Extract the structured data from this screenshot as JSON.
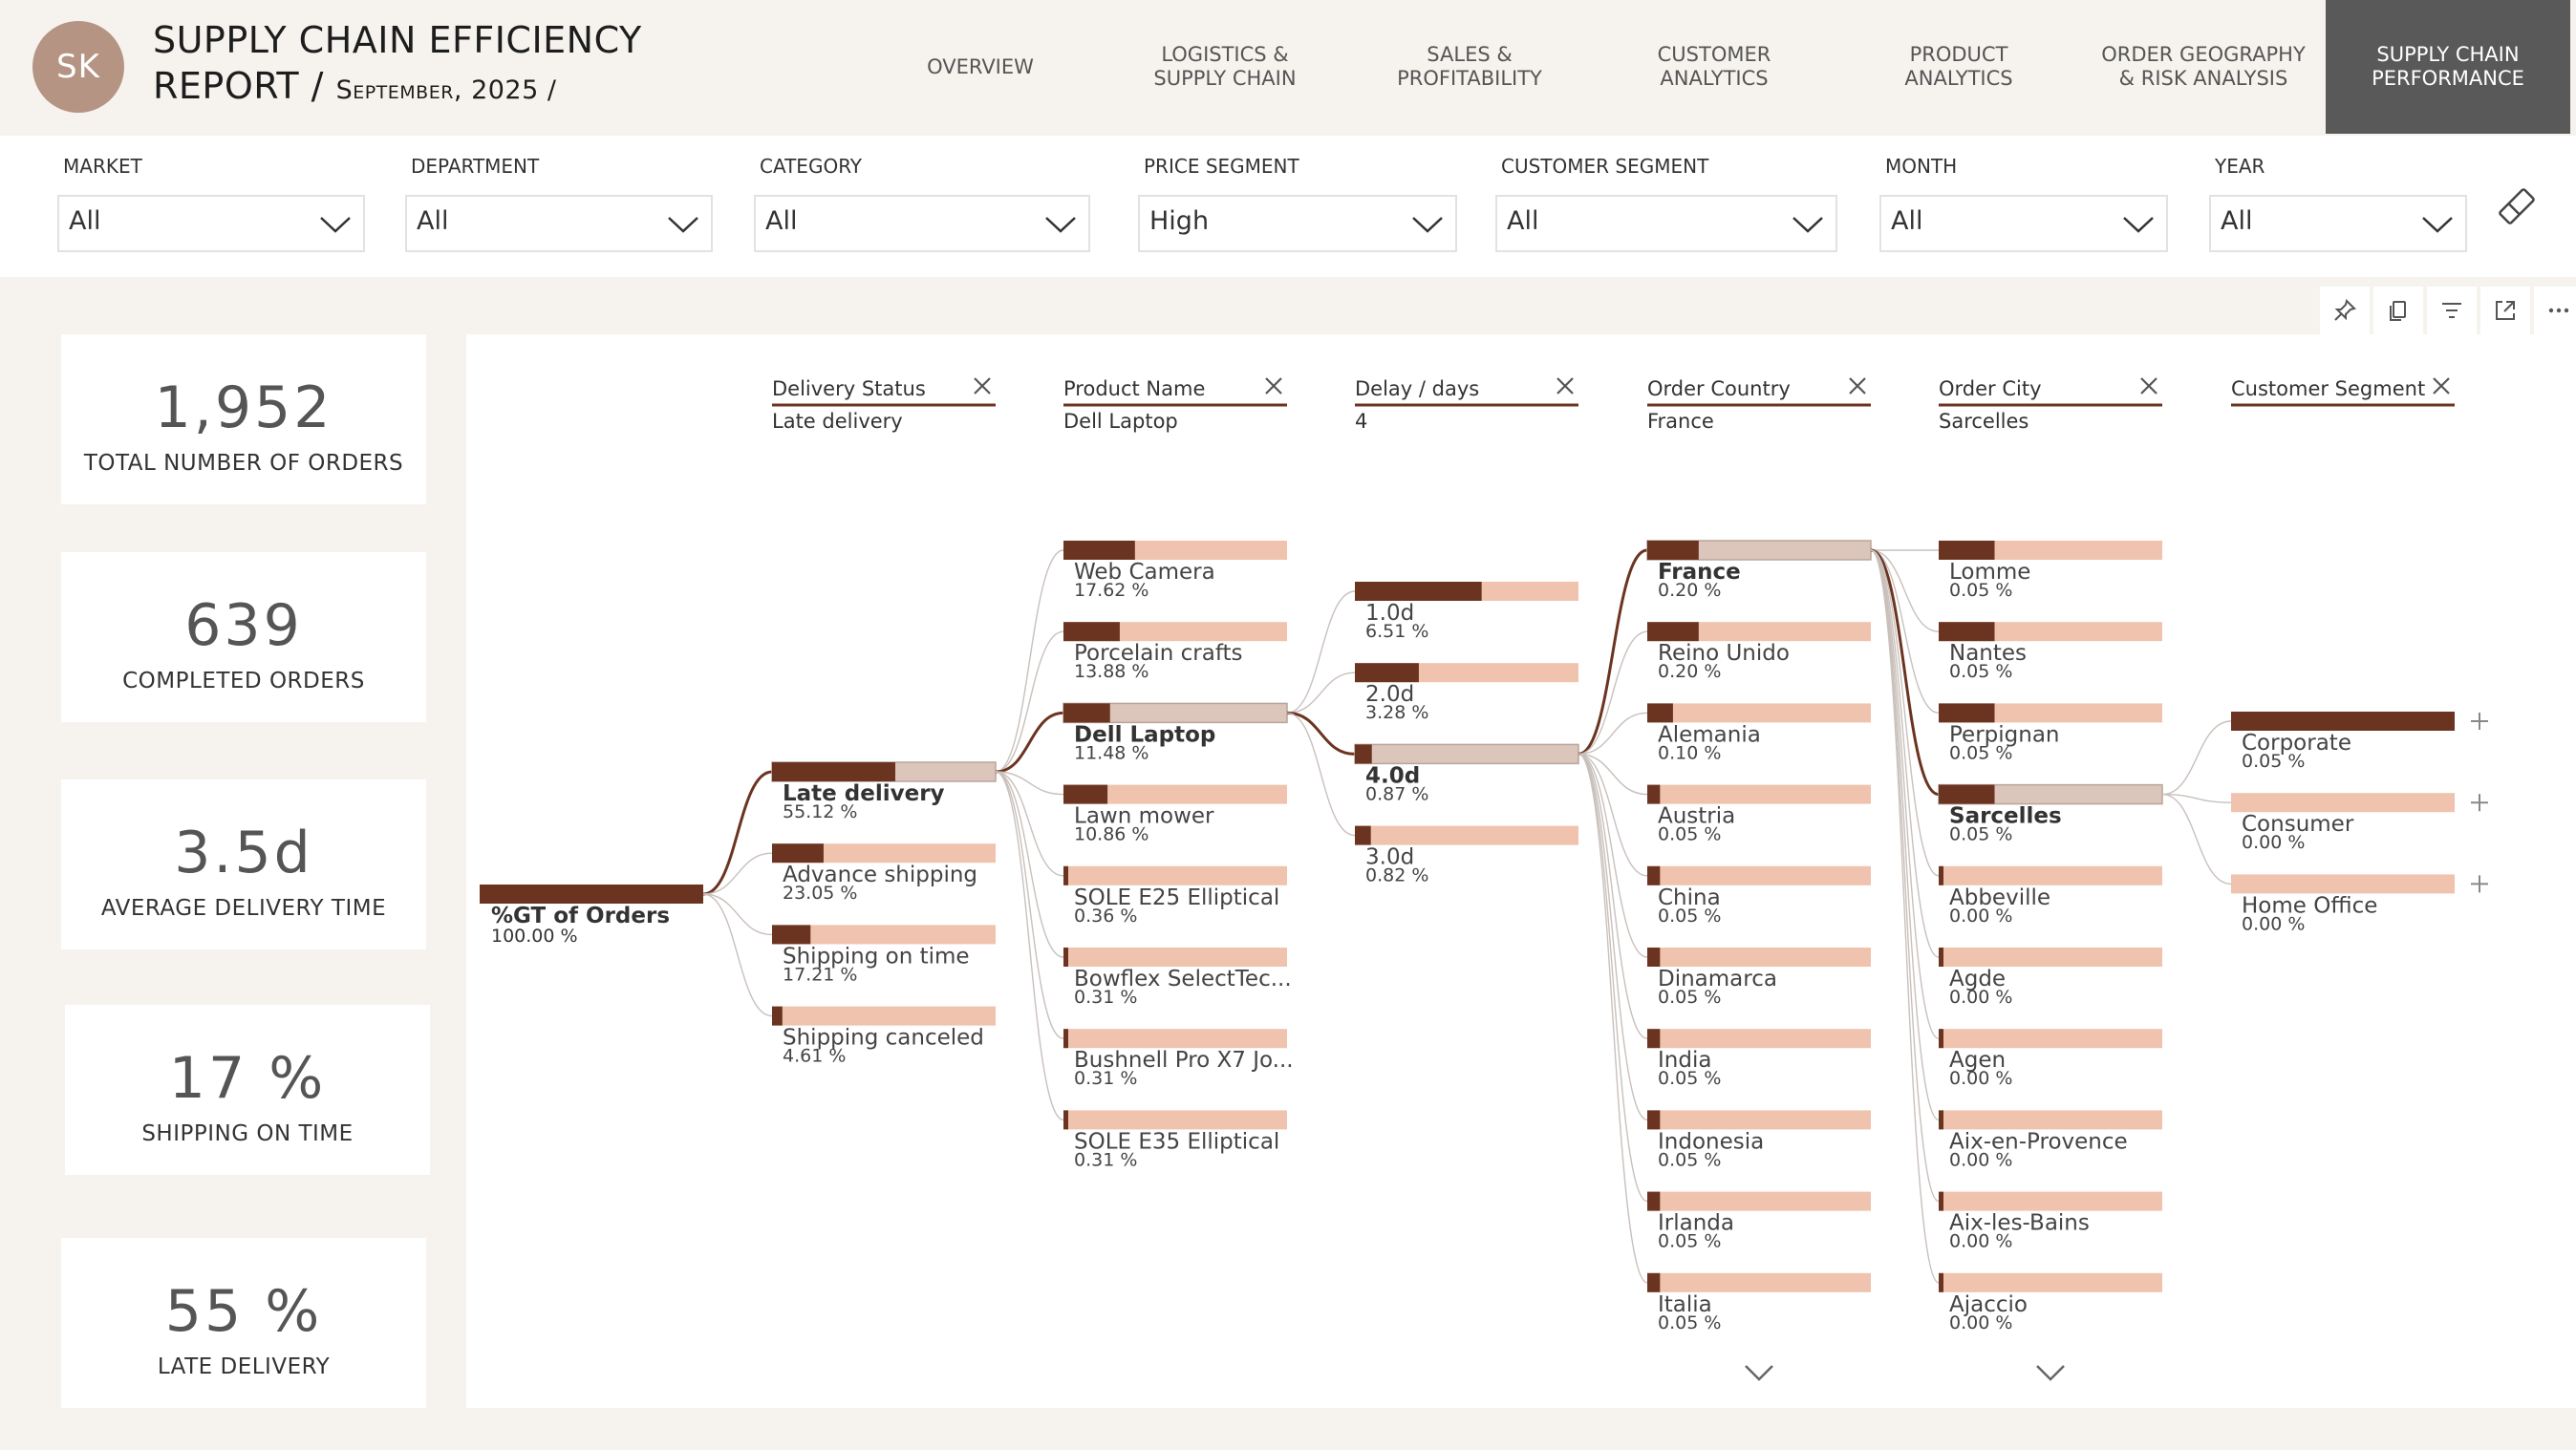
{
  "header": {
    "avatar": "SK",
    "title_line1": "SUPPLY CHAIN EFFICIENCY",
    "title_line2_main": "REPORT / ",
    "title_line2_sub": "September, 2025 /"
  },
  "nav": [
    {
      "label": "OVERVIEW"
    },
    {
      "label": "LOGISTICS &\nSUPPLY CHAIN"
    },
    {
      "label": "SALES &\nPROFITABILITY"
    },
    {
      "label": "CUSTOMER\nANALYTICS"
    },
    {
      "label": "PRODUCT\nANALYTICS"
    },
    {
      "label": "ORDER GEOGRAPHY\n& RISK ANALYSIS"
    },
    {
      "label": "SUPPLY CHAIN\nPERFORMANCE",
      "active": true
    }
  ],
  "filters": [
    {
      "label": "MARKET",
      "value": "All"
    },
    {
      "label": "DEPARTMENT",
      "value": "All"
    },
    {
      "label": "CATEGORY",
      "value": "All"
    },
    {
      "label": "PRICE SEGMENT",
      "value": "High"
    },
    {
      "label": "CUSTOMER SEGMENT",
      "value": "All"
    },
    {
      "label": "MONTH",
      "value": "All"
    },
    {
      "label": "YEAR",
      "value": "All"
    }
  ],
  "icons": {
    "filter_chevron": "chevron-down-icon",
    "clear_filters": "eraser-icon",
    "visual_header": [
      "pin-icon",
      "copy-icon",
      "filter-icon",
      "focus-mode-icon",
      "more-options-icon"
    ]
  },
  "kpis": [
    {
      "value": "1,952",
      "label": "TOTAL NUMBER OF ORDERS"
    },
    {
      "value": "639",
      "label": "COMPLETED ORDERS"
    },
    {
      "value": "3.5d",
      "label": "AVERAGE DELIVERY TIME"
    },
    {
      "value": "17 %",
      "label": "SHIPPING ON TIME"
    },
    {
      "value": "55 %",
      "label": "LATE DELIVERY"
    }
  ],
  "colors": {
    "bar_dark": "#6b3420",
    "bar_light": "#efc3ae",
    "bar_selected_bg": "#dcc5ba",
    "active_nav": "#595959",
    "avatar": "#b59483"
  },
  "decomposition_tree": {
    "root": {
      "label": "%GT of Orders",
      "value": "100.00 %",
      "fraction": 1.0
    },
    "levels": [
      {
        "field": "Delivery Status",
        "selected": "Late delivery",
        "items": [
          {
            "label": "Late delivery",
            "value": "55.12 %",
            "fraction": 0.5512,
            "selected": true
          },
          {
            "label": "Advance shipping",
            "value": "23.05 %",
            "fraction": 0.2305
          },
          {
            "label": "Shipping on time",
            "value": "17.21 %",
            "fraction": 0.1721
          },
          {
            "label": "Shipping canceled",
            "value": "4.61 %",
            "fraction": 0.0461
          }
        ]
      },
      {
        "field": "Product Name",
        "selected": "Dell Laptop",
        "items": [
          {
            "label": "Web Camera",
            "value": "17.62 %",
            "fraction": 0.3197
          },
          {
            "label": "Porcelain crafts",
            "value": "13.88 %",
            "fraction": 0.2518
          },
          {
            "label": "Dell Laptop",
            "value": "11.48 %",
            "fraction": 0.2083,
            "selected": true
          },
          {
            "label": "Lawn mower",
            "value": "10.86 %",
            "fraction": 0.197
          },
          {
            "label": "SOLE E25 Elliptical",
            "value": "0.36 %",
            "fraction": 0.0065
          },
          {
            "label": "Bowflex SelectTec...",
            "value": "0.31 %",
            "fraction": 0.0056
          },
          {
            "label": "Bushnell Pro X7 Jo...",
            "value": "0.31 %",
            "fraction": 0.0056
          },
          {
            "label": "SOLE E35 Elliptical",
            "value": "0.31 %",
            "fraction": 0.0056
          }
        ]
      },
      {
        "field": "Delay / days",
        "selected": "4",
        "items": [
          {
            "label": "1.0d",
            "value": "6.51 %",
            "fraction": 0.567
          },
          {
            "label": "2.0d",
            "value": "3.28 %",
            "fraction": 0.286
          },
          {
            "label": "4.0d",
            "value": "0.87 %",
            "fraction": 0.0758,
            "selected": true
          },
          {
            "label": "3.0d",
            "value": "0.82 %",
            "fraction": 0.0714
          }
        ]
      },
      {
        "field": "Order Country",
        "selected": "France",
        "items": [
          {
            "label": "France",
            "value": "0.20 %",
            "fraction": 0.23,
            "selected": true
          },
          {
            "label": "Reino Unido",
            "value": "0.20 %",
            "fraction": 0.23
          },
          {
            "label": "Alemania",
            "value": "0.10 %",
            "fraction": 0.115
          },
          {
            "label": "Austria",
            "value": "0.05 %",
            "fraction": 0.057
          },
          {
            "label": "China",
            "value": "0.05 %",
            "fraction": 0.057
          },
          {
            "label": "Dinamarca",
            "value": "0.05 %",
            "fraction": 0.057
          },
          {
            "label": "India",
            "value": "0.05 %",
            "fraction": 0.057
          },
          {
            "label": "Indonesia",
            "value": "0.05 %",
            "fraction": 0.057
          },
          {
            "label": "Irlanda",
            "value": "0.05 %",
            "fraction": 0.057
          },
          {
            "label": "Italia",
            "value": "0.05 %",
            "fraction": 0.057
          }
        ]
      },
      {
        "field": "Order City",
        "selected": "Sarcelles",
        "items": [
          {
            "label": "Lomme",
            "value": "0.05 %",
            "fraction": 0.25
          },
          {
            "label": "Nantes",
            "value": "0.05 %",
            "fraction": 0.25
          },
          {
            "label": "Perpignan",
            "value": "0.05 %",
            "fraction": 0.25
          },
          {
            "label": "Sarcelles",
            "value": "0.05 %",
            "fraction": 0.25,
            "selected": true
          },
          {
            "label": "Abbeville",
            "value": "0.00 %",
            "fraction": 0.02
          },
          {
            "label": "Agde",
            "value": "0.00 %",
            "fraction": 0.02
          },
          {
            "label": "Agen",
            "value": "0.00 %",
            "fraction": 0.02
          },
          {
            "label": "Aix-en-Provence",
            "value": "0.00 %",
            "fraction": 0.02
          },
          {
            "label": "Aix-les-Bains",
            "value": "0.00 %",
            "fraction": 0.02
          },
          {
            "label": "Ajaccio",
            "value": "0.00 %",
            "fraction": 0.02
          }
        ]
      },
      {
        "field": "Customer Segment",
        "selected": "",
        "items": [
          {
            "label": "Corporate",
            "value": "0.05 %",
            "fraction": 1.0,
            "expand": "+"
          },
          {
            "label": "Consumer",
            "value": "0.00 %",
            "fraction": 0.0,
            "expand": "+"
          },
          {
            "label": "Home Office",
            "value": "0.00 %",
            "fraction": 0.0,
            "expand": "+"
          }
        ]
      }
    ]
  }
}
